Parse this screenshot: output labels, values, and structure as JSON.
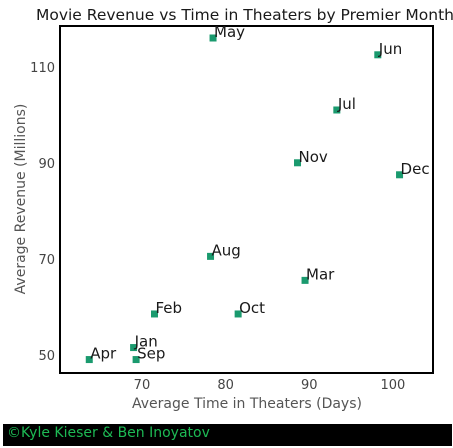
{
  "chart_data": {
    "type": "scatter",
    "title": "Movie Revenue vs Time in Theaters by Premier Month",
    "xlabel": "Average Time in Theaters (Days)",
    "ylabel": "Average Revenue (Millions)",
    "xlim": [
      60.2,
      104.8
    ],
    "ylim": [
      46.2,
      118.5
    ],
    "xticks": [
      70,
      80,
      90,
      100
    ],
    "yticks": [
      50,
      70,
      90,
      110
    ],
    "grid": false,
    "marker_color": "#1a9a6e",
    "points": [
      {
        "label": "May",
        "x": 78.5,
        "y": 116.0
      },
      {
        "label": "Jun",
        "x": 98.2,
        "y": 112.5
      },
      {
        "label": "Jul",
        "x": 93.3,
        "y": 101.0
      },
      {
        "label": "Nov",
        "x": 88.6,
        "y": 90.0
      },
      {
        "label": "Dec",
        "x": 100.8,
        "y": 87.5
      },
      {
        "label": "Aug",
        "x": 78.2,
        "y": 70.5
      },
      {
        "label": "Mar",
        "x": 89.5,
        "y": 65.5
      },
      {
        "label": "Feb",
        "x": 71.5,
        "y": 58.5
      },
      {
        "label": "Oct",
        "x": 81.5,
        "y": 58.5
      },
      {
        "label": "Jan",
        "x": 69.0,
        "y": 51.5
      },
      {
        "label": "Apr",
        "x": 63.7,
        "y": 49.0
      },
      {
        "label": "Sep",
        "x": 69.3,
        "y": 49.0
      }
    ]
  },
  "footer": {
    "credit": "©Kyle Kieser & Ben Inoyatov",
    "text_color": "#1db954",
    "background": "#000000"
  }
}
